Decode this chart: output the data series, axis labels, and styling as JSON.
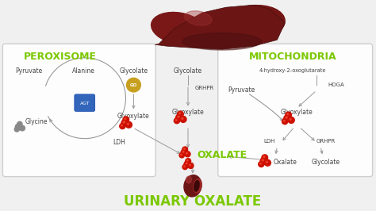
{
  "bg_color": "#f0f0f0",
  "box_color": "#ffffff",
  "box_edge_color": "#cccccc",
  "green_color": "#7bc800",
  "gray_arrow": "#999999",
  "red_color": "#cc1100",
  "dark_red": "#8b1a1a",
  "gold_color": "#c8a020",
  "blue_color": "#3366bb",
  "text_color": "#444444",
  "title": "URINARY OXALATE",
  "peroxisome_label": "PEROXISOME",
  "mito_label": "MITOCHONDRIA",
  "oxalate_label": "OXALATE",
  "figsize": [
    4.74,
    2.66
  ],
  "dpi": 100
}
